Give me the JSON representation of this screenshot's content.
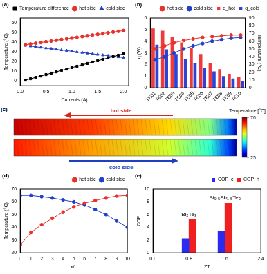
{
  "chart_data": [
    {
      "panel": "(a)",
      "type": "line",
      "x": [
        0.1,
        0.2,
        0.3,
        0.4,
        0.5,
        0.6,
        0.7,
        0.8,
        0.9,
        1.0,
        1.1,
        1.2,
        1.3,
        1.4,
        1.5,
        1.6,
        1.7,
        1.8,
        1.9,
        2.0
      ],
      "x_label": "Currents (A)",
      "y_label": "Temperature (°C)",
      "xlim": [
        0,
        2.1
      ],
      "xticks": [
        {
          "value": 0,
          "label": "0.0"
        },
        0.5,
        {
          "value": 1,
          "label": "1.0"
        },
        1.5,
        {
          "value": 2,
          "label": "2.0"
        }
      ],
      "ylim": [
        -5,
        65
      ],
      "yticks": [
        0,
        10,
        20,
        30,
        40,
        50,
        60
      ],
      "grid": false,
      "legend": "top",
      "series": [
        {
          "name": "Temperature difference",
          "color": "#000000",
          "marker": "square",
          "line_style": "solid",
          "values": [
            0.8,
            2.2,
            3.6,
            5.0,
            6.5,
            8.0,
            9.3,
            10.8,
            12.2,
            13.7,
            15.1,
            16.5,
            18.0,
            19.4,
            20.8,
            22.3,
            23.7,
            25.2,
            26.5,
            28.0
          ]
        },
        {
          "name": "hot side",
          "color": "#e8312a",
          "marker": "circle",
          "line_style": "solid",
          "values": [
            37.3,
            38.1,
            38.8,
            39.6,
            40.4,
            41.2,
            41.9,
            42.7,
            43.5,
            44.3,
            45.0,
            45.8,
            46.6,
            47.4,
            48.1,
            48.9,
            49.7,
            50.5,
            51.2,
            52.0
          ]
        },
        {
          "name": "cold side",
          "color": "#2040c8",
          "marker": "triangle",
          "line_style": "solid",
          "values": [
            36.5,
            35.9,
            35.2,
            34.6,
            33.9,
            33.2,
            32.6,
            31.9,
            31.3,
            30.6,
            29.9,
            29.3,
            28.6,
            28.0,
            27.3,
            26.6,
            26.0,
            25.3,
            24.7,
            24.0
          ]
        }
      ]
    },
    {
      "panel": "(b)",
      "type": "bar",
      "categories": [
        "TE01",
        "TE02",
        "TE03",
        "TE04",
        "TE05",
        "TE06",
        "TE07",
        "TE08",
        "TE09",
        "TE10"
      ],
      "y_label": "q (W)",
      "ylim": [
        0,
        6
      ],
      "yticks": [
        0,
        1,
        2,
        3,
        4,
        5,
        6
      ],
      "y2_label": "Temperature (°C)",
      "y2lim": [
        0,
        90
      ],
      "y2ticks": [
        0,
        10,
        20,
        30,
        40,
        50,
        60,
        70,
        80,
        90
      ],
      "grid": false,
      "legend": "top",
      "series": [
        {
          "name": "q_hot",
          "type": "bar",
          "color": "#f03a3a",
          "values": [
            5.1,
            4.9,
            4.4,
            3.9,
            3.4,
            2.9,
            2.1,
            1.6,
            1.2,
            0.9
          ]
        },
        {
          "name": "q_cold",
          "type": "bar",
          "color": "#2b44d6",
          "values": [
            3.7,
            3.3,
            2.9,
            2.5,
            2.1,
            1.7,
            1.4,
            1.0,
            0.8,
            0.6
          ]
        },
        {
          "name": "hot side",
          "type": "line",
          "axis": "y2",
          "color": "#e8312a",
          "marker": "circle",
          "line_style": "solid",
          "values": [
            50,
            54,
            58,
            61,
            63,
            65,
            66,
            67,
            68,
            68
          ]
        },
        {
          "name": "cold side",
          "type": "line",
          "axis": "y2",
          "color": "#2040c8",
          "marker": "circle",
          "line_style": "solid",
          "values": [
            36,
            40,
            45,
            50,
            54,
            57,
            60,
            62,
            64,
            65
          ]
        }
      ]
    },
    {
      "panel": "(d)",
      "type": "line",
      "x": [
        0,
        1,
        2,
        3,
        4,
        5,
        6,
        7,
        8,
        9,
        10
      ],
      "x_label": "x/L",
      "y_label": "Temperature (°C)",
      "xlim": [
        0,
        10
      ],
      "xticks": [
        0,
        1,
        2,
        3,
        4,
        5,
        6,
        7,
        8,
        9,
        10
      ],
      "ylim": [
        20,
        70
      ],
      "yticks": [
        20,
        30,
        40,
        50,
        60,
        70
      ],
      "grid": false,
      "legend": "top",
      "series": [
        {
          "name": "hot side",
          "color": "#e8312a",
          "marker": "circle",
          "line_style": "solid",
          "values": [
            26,
            36,
            42,
            47,
            52,
            56,
            59,
            61,
            63,
            64.5,
            65
          ]
        },
        {
          "name": "cold side",
          "color": "#2040c8",
          "marker": "circle",
          "line_style": "solid",
          "values": [
            65,
            65,
            64,
            63,
            61.5,
            60,
            57.5,
            54,
            50,
            45,
            40
          ]
        }
      ]
    },
    {
      "panel": "(e)",
      "type": "bar",
      "x": [
        0.8,
        1.6
      ],
      "x_label": "ZT",
      "y_label": "COP",
      "xlim": [
        0,
        2.4
      ],
      "xticks": [
        {
          "value": 0,
          "label": "0.0"
        },
        0.8,
        1.6,
        2.4
      ],
      "ylim": [
        0,
        10
      ],
      "yticks": [
        0,
        2,
        4,
        6,
        8,
        10
      ],
      "grid": false,
      "legend": "top",
      "annotations": [
        "Bi₂Te₃",
        "Bi₀.₅Sb₁.₅Te₃"
      ],
      "series": [
        {
          "name": "COP_c",
          "color": "#2b2bf0",
          "values": [
            2.2,
            3.4
          ]
        },
        {
          "name": "COP_h",
          "color": "#f02020",
          "values": [
            5.3,
            7.8
          ]
        }
      ]
    }
  ],
  "panel_c": {
    "panel": "(c)",
    "hot_label": "hot side",
    "cold_label": "cold side",
    "colorbar": {
      "title": "Temperature [°C]",
      "lim": [
        25,
        70
      ],
      "ticks": [
        70,
        25
      ]
    }
  }
}
